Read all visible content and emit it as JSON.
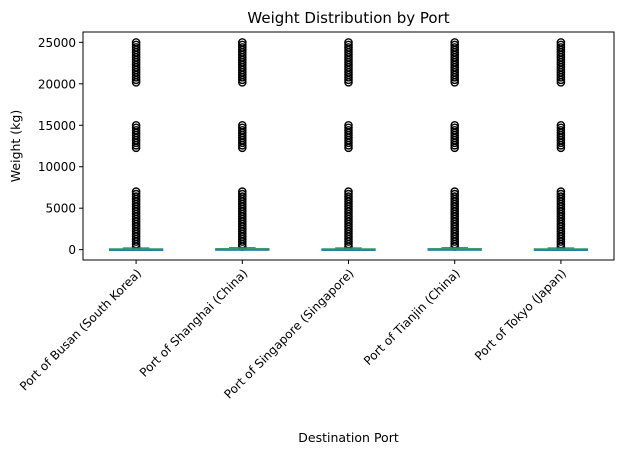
{
  "chart_data": {
    "type": "box",
    "title": "Weight Distribution by Port",
    "xlabel": "Destination Port",
    "ylabel": "Weight (kg)",
    "categories": [
      "Port of Busan (South Korea)",
      "Port of Shanghai (China)",
      "Port of Singapore (Singapore)",
      "Port of Tianjin (China)",
      "Port of Tokyo (Japan)"
    ],
    "yticks": [
      0,
      5000,
      10000,
      15000,
      20000,
      25000
    ],
    "ytick_labels": [
      "0",
      "5000",
      "10000",
      "15000",
      "20000",
      "25000"
    ],
    "ylim": [
      -1250,
      26250
    ],
    "boxes": [
      {
        "whisker_low": 0,
        "q1": 10,
        "median": 40,
        "q3": 90,
        "whisker_high": 210
      },
      {
        "whisker_low": 0,
        "q1": 15,
        "median": 50,
        "q3": 110,
        "whisker_high": 250
      },
      {
        "whisker_low": 0,
        "q1": 10,
        "median": 40,
        "q3": 90,
        "whisker_high": 210
      },
      {
        "whisker_low": 0,
        "q1": 15,
        "median": 50,
        "q3": 110,
        "whisker_high": 250
      },
      {
        "whisker_low": 0,
        "q1": 10,
        "median": 40,
        "q3": 90,
        "whisker_high": 210
      }
    ],
    "outlier_ranges": [
      [
        250,
        7000
      ],
      [
        12000,
        15000
      ],
      [
        20000,
        25000
      ]
    ],
    "colors": {
      "box": "#1f77b4",
      "median": "#2ca02c",
      "outlier": "#000000",
      "axes": "#000000"
    },
    "grid": false,
    "legend": "none"
  }
}
